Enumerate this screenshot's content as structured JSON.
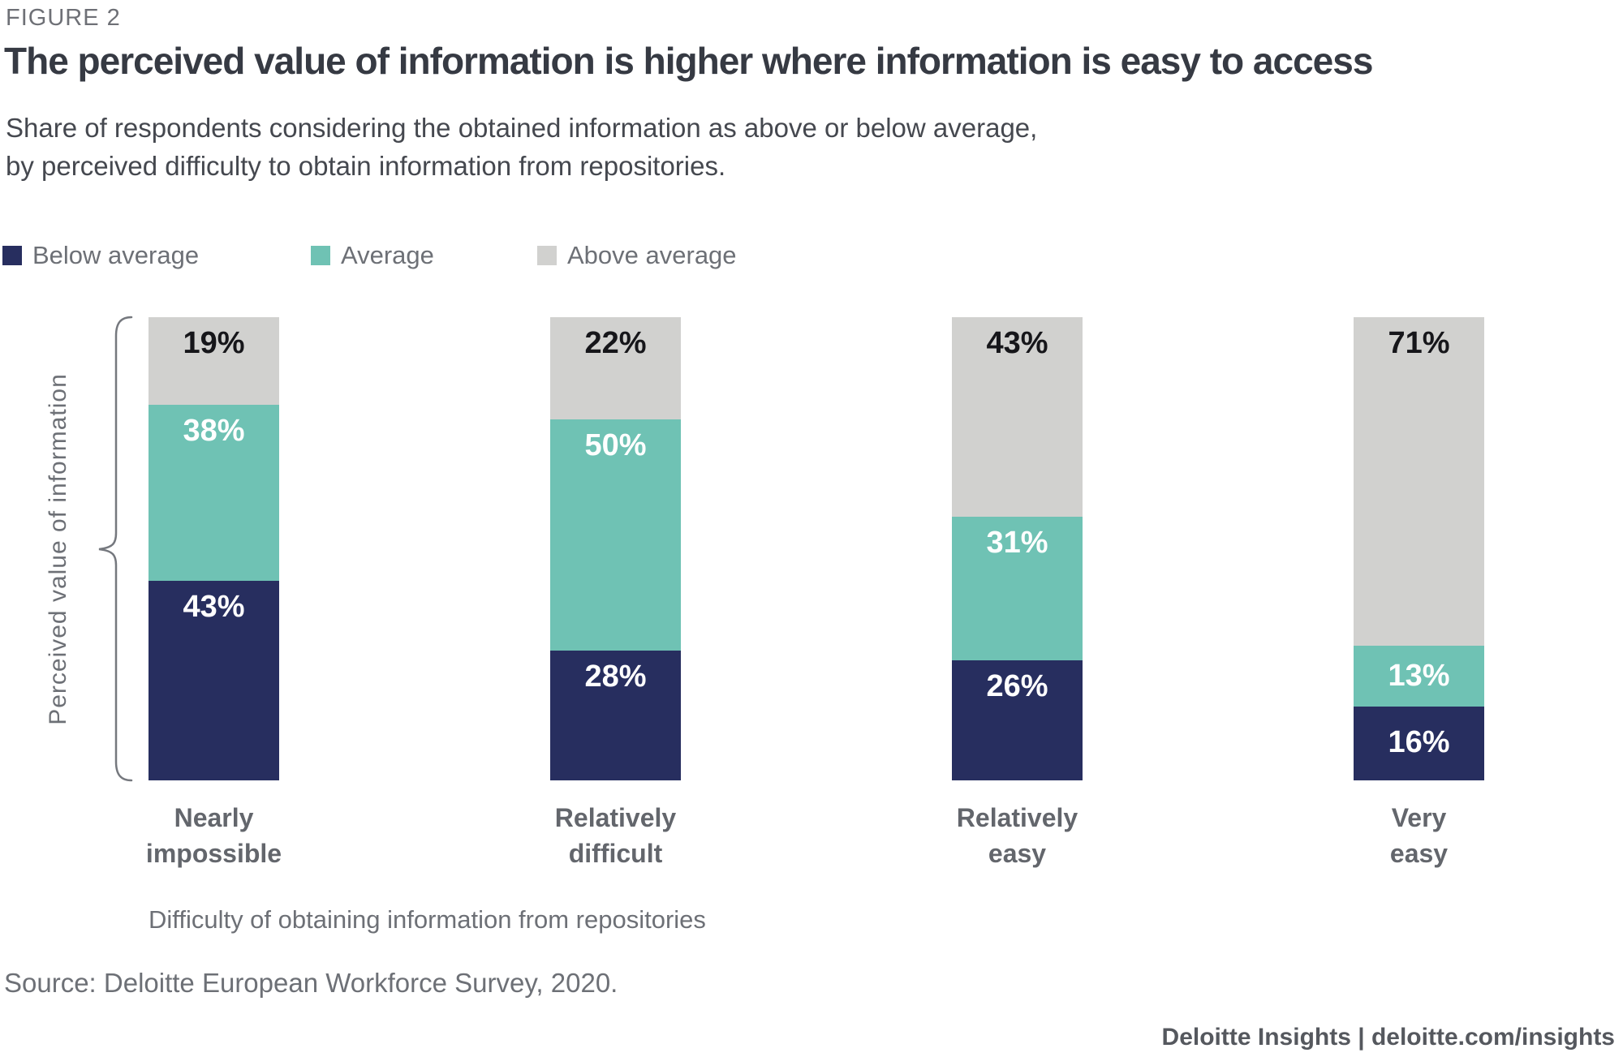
{
  "figure_label": "FIGURE 2",
  "title": "The perceived value of information is higher where information is easy to access",
  "subtitle_lines": [
    "Share of respondents considering the obtained information as above or below average,",
    "by perceived difficulty to obtain information from repositories."
  ],
  "legend": [
    {
      "label": "Below average",
      "color": "#272e5f"
    },
    {
      "label": "Average",
      "color": "#6fc2b4"
    },
    {
      "label": "Above average",
      "color": "#d1d1cf"
    }
  ],
  "chart_data": {
    "type": "bar",
    "stacked": true,
    "orientation": "vertical",
    "categories": [
      "Nearly impossible",
      "Relatively difficult",
      "Relatively easy",
      "Very easy"
    ],
    "categories_lines": [
      [
        "Nearly",
        "impossible"
      ],
      [
        "Relatively",
        "difficult"
      ],
      [
        "Relatively",
        "easy"
      ],
      [
        "Very",
        "easy"
      ]
    ],
    "series": [
      {
        "name": "Below average",
        "color": "#272e5f",
        "label_color": "#ffffff",
        "values": [
          43,
          28,
          26,
          16
        ]
      },
      {
        "name": "Average",
        "color": "#6fc2b4",
        "label_color": "#ffffff",
        "values": [
          38,
          50,
          31,
          13
        ]
      },
      {
        "name": "Above average",
        "color": "#d1d1cf",
        "label_color": "#16161a",
        "values": [
          19,
          22,
          43,
          71
        ]
      }
    ],
    "value_suffix": "%",
    "data_labels": true,
    "xlabel": "Difficulty of obtaining information from repositories",
    "ylabel": "Perceived value of information",
    "ylim": [
      0,
      100
    ],
    "grid": false,
    "legend_position": "top"
  },
  "source": "Source: Deloitte European Workforce Survey, 2020.",
  "footer": {
    "text": "Deloitte Insights | deloitte.com/insights"
  }
}
